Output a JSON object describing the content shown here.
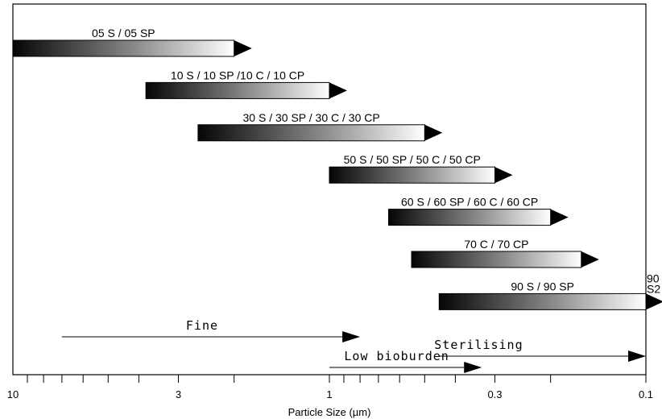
{
  "chart_data": {
    "type": "range-bar",
    "x_scale": "log",
    "x_reversed": true,
    "xlim": [
      10,
      0.1
    ],
    "xlabel": "Particle Size (µm)",
    "x_ticks": [
      {
        "value": 10,
        "label": "10"
      },
      {
        "value": 3,
        "label": "3"
      },
      {
        "value": 1,
        "label": "1"
      },
      {
        "value": 0.3,
        "label": "0.3"
      },
      {
        "value": 0.1,
        "label": "0.1"
      }
    ],
    "grades": [
      {
        "label": "05 S / 05 SP",
        "from": 10,
        "to": 2.0
      },
      {
        "label": "10 S  / 10 SP /10 C / 10 CP",
        "from": 3.8,
        "to": 1.0
      },
      {
        "label": "30 S  / 30 SP / 30 C / 30 CP",
        "from": 2.6,
        "to": 0.5
      },
      {
        "label": "50 S  / 50 SP / 50 C / 50 CP",
        "from": 1.0,
        "to": 0.3
      },
      {
        "label": "60 S  / 60 SP / 60 C / 60 CP",
        "from": 0.65,
        "to": 0.2
      },
      {
        "label": "70 C / 70 CP",
        "from": 0.55,
        "to": 0.16
      },
      {
        "label": "90 S  / 90 SP",
        "from": 0.45,
        "to": 0.1,
        "extra_label_1": "90",
        "extra_label_2": "S2"
      }
    ],
    "ranges": [
      {
        "label": "Fine",
        "from": 7.0,
        "to": 0.8
      },
      {
        "label": "Low bioburden",
        "from": 1.0,
        "to": 0.33
      },
      {
        "label": "Sterilising",
        "from": 0.45,
        "to": 0.1
      }
    ]
  }
}
